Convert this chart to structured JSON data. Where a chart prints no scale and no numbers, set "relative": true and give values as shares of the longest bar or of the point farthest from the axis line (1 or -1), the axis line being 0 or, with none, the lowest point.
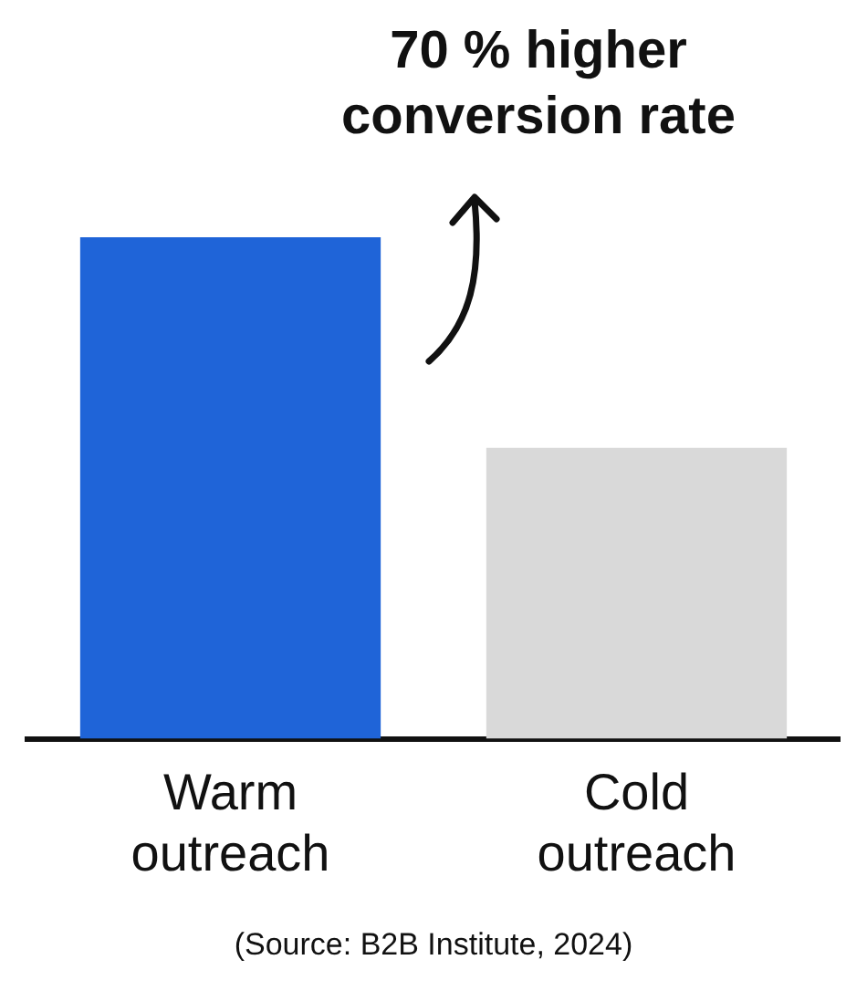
{
  "chart_data": {
    "type": "bar",
    "relative": true,
    "title": "70 % higher\nconversion rate",
    "categories": [
      "Warm outreach",
      "Cold outreach"
    ],
    "values": [
      1,
      0.58
    ],
    "colors": [
      "#1f64d8",
      "#d9d9d9"
    ],
    "grid": false,
    "annotations": [
      "(Source: B2B Institute, 2024)"
    ]
  }
}
